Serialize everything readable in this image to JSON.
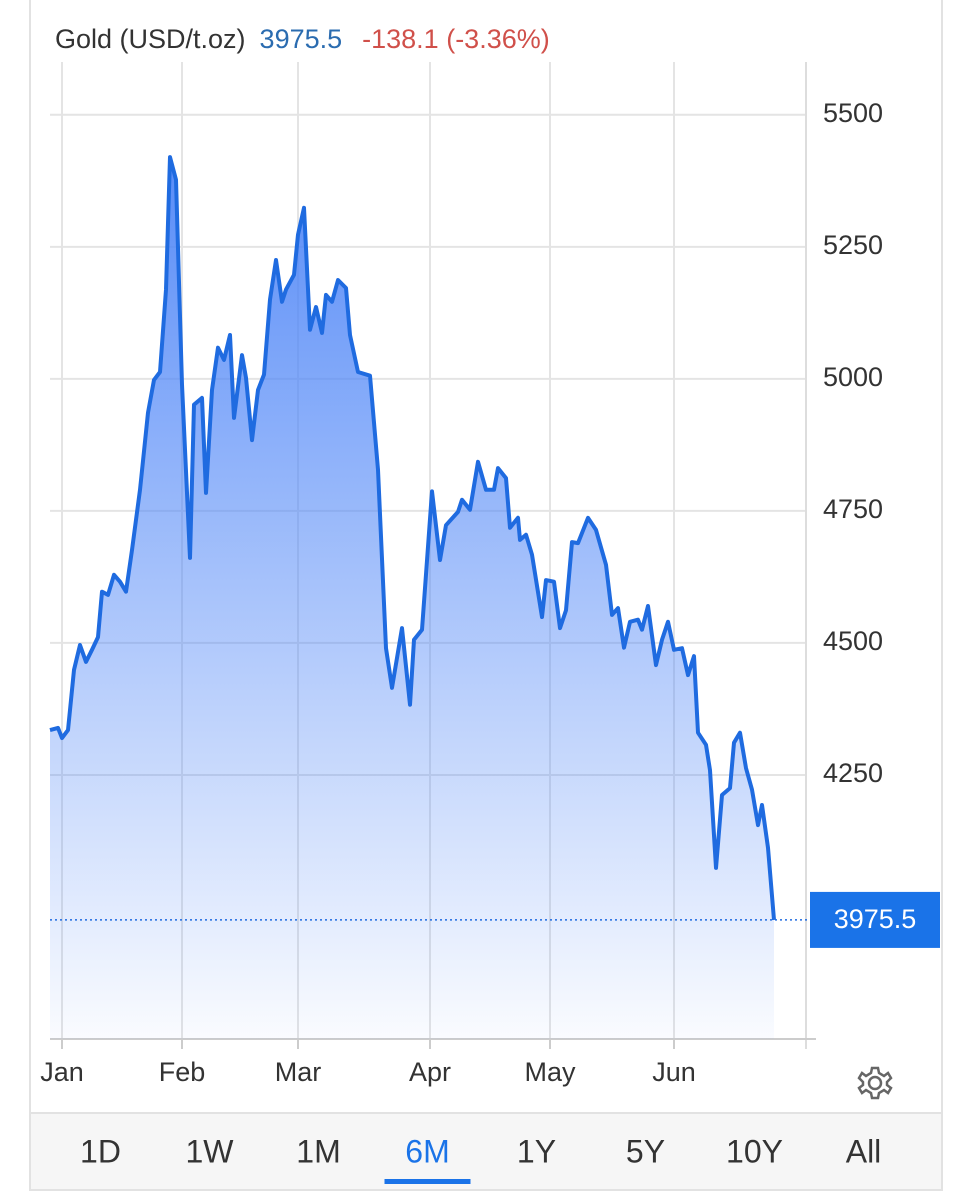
{
  "chart_data": {
    "type": "area",
    "title": "Gold (USD/t.oz)",
    "change": "-138.1 (-3.36%)",
    "x": [
      0,
      2,
      3,
      4.5,
      6,
      7.5,
      9,
      10.5,
      12,
      13,
      14.5,
      16,
      17.5,
      19,
      20.5,
      22.5,
      24.5,
      26,
      27.5,
      29,
      30,
      31.5,
      33,
      35,
      36,
      38,
      39,
      40.5,
      42,
      43.5,
      45,
      46,
      48,
      49,
      50.5,
      52,
      53.5,
      55,
      56.5,
      58,
      59,
      61,
      62,
      63.5,
      65,
      66.5,
      68,
      69,
      70.5,
      72,
      74,
      75,
      77,
      80,
      82,
      84,
      85.5,
      88,
      90,
      91,
      93,
      95.5,
      97.5,
      99,
      102,
      103,
      105,
      107,
      109,
      111,
      112,
      114,
      115,
      117,
      117.5,
      119,
      120.5,
      123,
      124,
      126,
      127.5,
      129,
      130.5,
      132,
      134.5,
      136.5,
      139,
      140.5,
      142,
      143.5,
      145,
      147,
      148,
      149.5,
      151.5,
      153,
      154.5,
      156,
      158,
      159.5,
      161,
      162,
      164,
      165,
      166.5,
      168,
      170,
      171,
      172.5,
      174,
      175.5,
      177,
      178,
      179.5,
      181
    ],
    "series": [
      {
        "color": "#1f6be0",
        "fill": "#4f86f7",
        "values": [
          4335,
          4339,
          4320,
          4335,
          4449,
          4496,
          4464,
          4487,
          4511,
          4597,
          4591,
          4629,
          4616,
          4597,
          4676,
          4790,
          4936,
          4998,
          5013,
          5169,
          5420,
          5377,
          4989,
          4661,
          4951,
          4964,
          4784,
          4979,
          5059,
          5036,
          5083,
          4926,
          5045,
          5002,
          4884,
          4979,
          5008,
          5150,
          5225,
          5146,
          5169,
          5197,
          5273,
          5324,
          5093,
          5136,
          5087,
          5159,
          5146,
          5187,
          5172,
          5083,
          5013,
          5006,
          4828,
          4490,
          4415,
          4528,
          4383,
          4506,
          4525,
          4787,
          4657,
          4723,
          4748,
          4771,
          4752,
          4843,
          4790,
          4790,
          4831,
          4812,
          4718,
          4737,
          4695,
          4705,
          4667,
          4549,
          4619,
          4616,
          4528,
          4562,
          4691,
          4689,
          4737,
          4714,
          4648,
          4553,
          4566,
          4491,
          4540,
          4544,
          4525,
          4570,
          4458,
          4506,
          4540,
          4487,
          4490,
          4439,
          4475,
          4330,
          4307,
          4259,
          4074,
          4212,
          4225,
          4311,
          4330,
          4263,
          4222,
          4155,
          4193,
          4112,
          3975.5
        ]
      }
    ],
    "xlim": [
      0,
      189
    ],
    "xticks": [
      {
        "value": 3,
        "label": "Jan"
      },
      {
        "value": 33,
        "label": "Feb"
      },
      {
        "value": 62,
        "label": "Mar"
      },
      {
        "value": 95,
        "label": "Apr"
      },
      {
        "value": 125,
        "label": "May"
      },
      {
        "value": 156,
        "label": "Jun"
      }
    ],
    "ylim": [
      3750,
      5600
    ],
    "yticks": [
      4250,
      4500,
      4750,
      5000,
      5250,
      5500
    ],
    "grid": true,
    "title_color": "#333333",
    "price_color": "#2b6cb0",
    "change_color": "#d0504a",
    "badge_color": "#1a73e8",
    "ranges": [
      "1D",
      "1W",
      "1M",
      "6M",
      "1Y",
      "5Y",
      "10Y",
      "All"
    ],
    "selected_range": "6M"
  }
}
